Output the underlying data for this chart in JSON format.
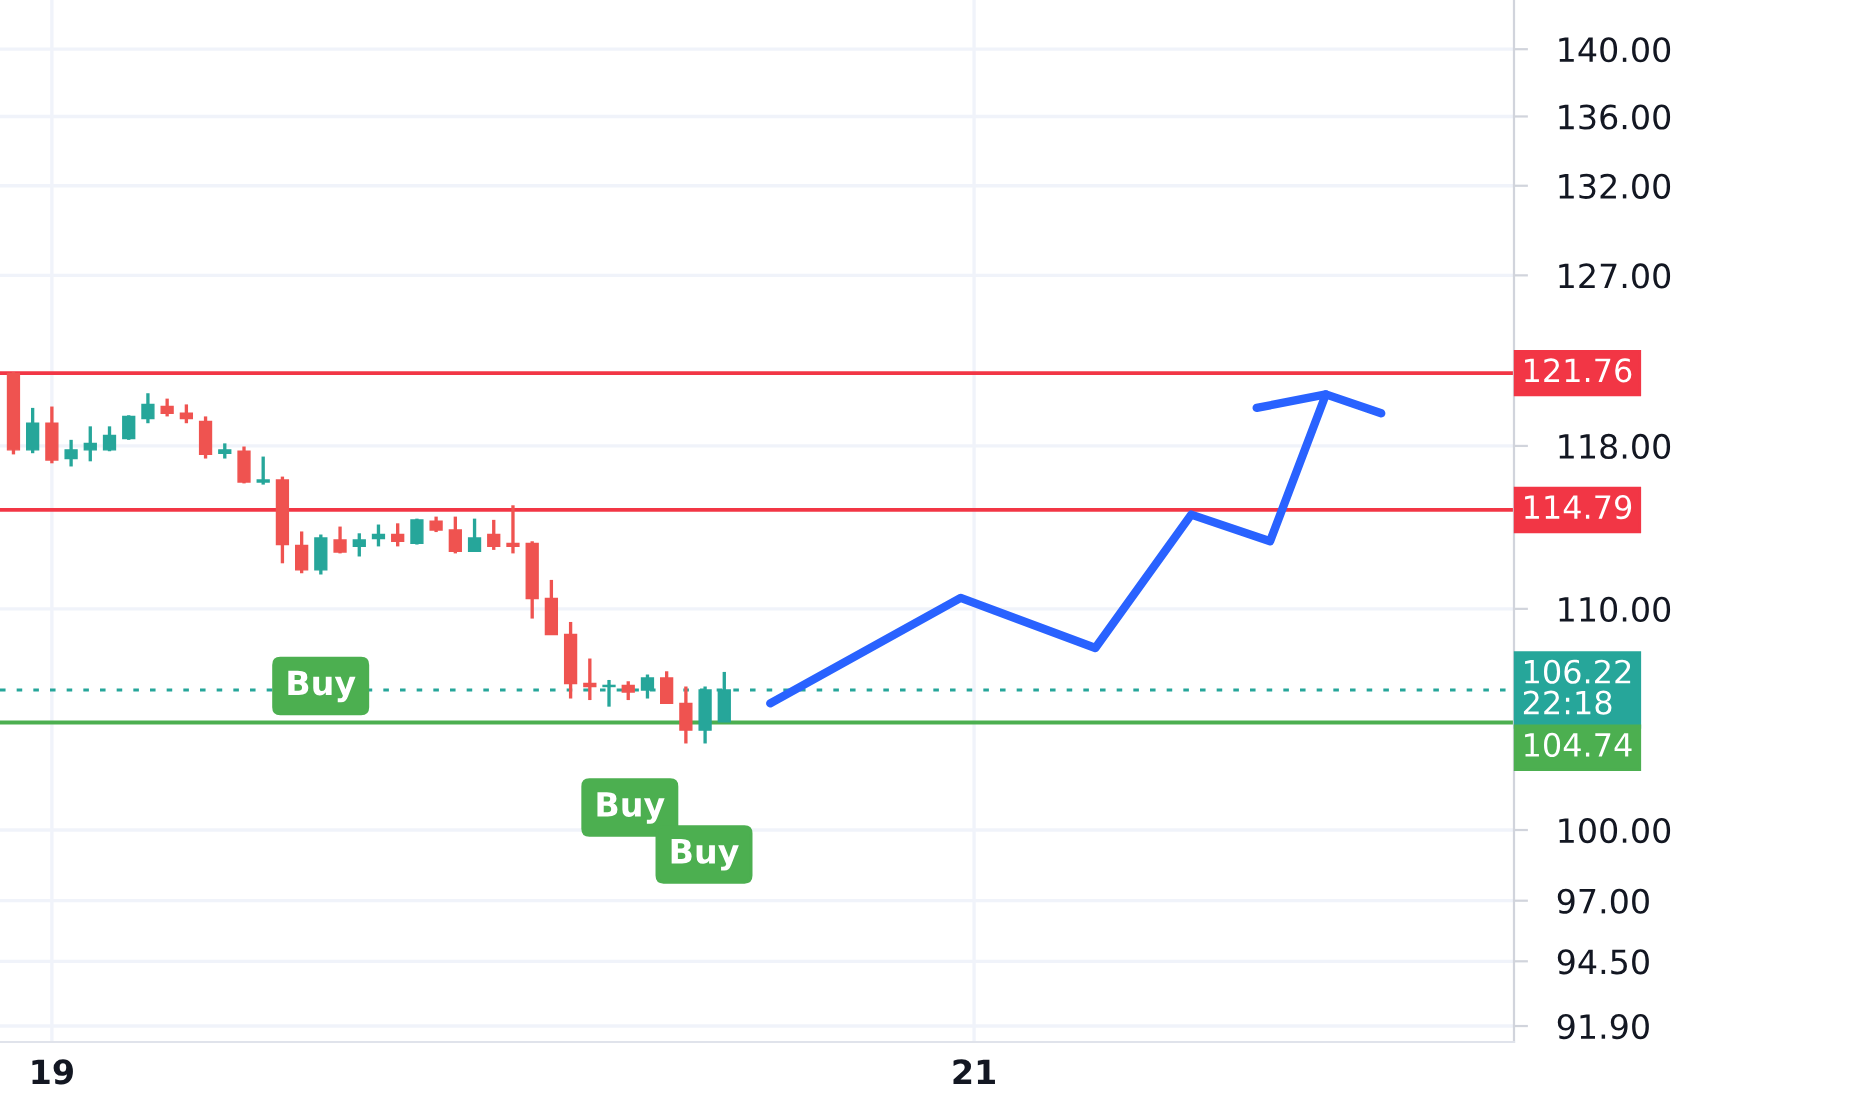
{
  "chart_data": {
    "type": "candlestick",
    "log": true,
    "grid": true,
    "x": [
      18.9167,
      18.9583,
      19.0,
      19.0417,
      19.0833,
      19.125,
      19.1667,
      19.2083,
      19.25,
      19.2917,
      19.3333,
      19.375,
      19.4167,
      19.4583,
      19.5,
      19.5417,
      19.5833,
      19.625,
      19.6667,
      19.7083,
      19.75,
      19.7917,
      19.8333,
      19.875,
      19.9167,
      19.9583,
      20.0,
      20.0417,
      20.0833,
      20.125,
      20.1667,
      20.2083,
      20.25,
      20.2917,
      20.3333,
      20.375,
      20.4167,
      20.4583
    ],
    "ohlc": [
      [
        121.75,
        121.82,
        117.57,
        117.8
      ],
      [
        117.8,
        119.95,
        117.63,
        119.16
      ],
      [
        119.16,
        120.02,
        117.12,
        117.29
      ],
      [
        117.36,
        118.31,
        116.96,
        117.8
      ],
      [
        117.8,
        119.0,
        117.22,
        118.13
      ],
      [
        117.8,
        119.0,
        117.73,
        118.54
      ],
      [
        118.37,
        119.57,
        118.31,
        119.51
      ],
      [
        119.4,
        120.71,
        119.16,
        120.13
      ],
      [
        120.02,
        120.43,
        119.51,
        119.67
      ],
      [
        119.67,
        120.13,
        119.16,
        119.4
      ],
      [
        119.25,
        119.51,
        117.36,
        117.57
      ],
      [
        117.63,
        118.13,
        117.36,
        117.8
      ],
      [
        117.73,
        117.97,
        116.11,
        116.18
      ],
      [
        116.18,
        117.46,
        116.05,
        116.28
      ],
      [
        116.28,
        116.45,
        112.18,
        113.09
      ],
      [
        113.05,
        113.73,
        111.7,
        111.86
      ],
      [
        111.86,
        113.58,
        111.64,
        113.41
      ],
      [
        113.31,
        113.97,
        112.66,
        112.73
      ],
      [
        113.0,
        113.64,
        112.51,
        113.31
      ],
      [
        113.38,
        114.07,
        113.0,
        113.58
      ],
      [
        113.58,
        114.13,
        113.0,
        113.25
      ],
      [
        113.15,
        114.36,
        113.09,
        114.3
      ],
      [
        114.23,
        114.46,
        113.7,
        113.8
      ],
      [
        113.8,
        114.46,
        112.66,
        112.76
      ],
      [
        112.76,
        114.36,
        112.76,
        113.41
      ],
      [
        113.58,
        114.3,
        112.83,
        113.0
      ],
      [
        113.15,
        115.02,
        112.66,
        113.0
      ],
      [
        113.15,
        113.25,
        109.54,
        110.49
      ],
      [
        110.49,
        111.38,
        108.79,
        108.79
      ],
      [
        108.79,
        109.38,
        105.83,
        106.52
      ],
      [
        106.52,
        107.67,
        105.76,
        106.38
      ],
      [
        106.38,
        106.68,
        105.46,
        106.43
      ],
      [
        106.43,
        106.62,
        105.76,
        106.13
      ],
      [
        106.22,
        106.93,
        105.83,
        106.77
      ],
      [
        106.77,
        107.08,
        105.61,
        105.61
      ],
      [
        105.61,
        106.38,
        103.8,
        104.4
      ],
      [
        104.4,
        106.38,
        103.8,
        106.22
      ],
      [
        104.77,
        107.05,
        104.77,
        106.22
      ]
    ],
    "colors": [
      "#ef5350",
      "#26a69a",
      "#ef5350",
      "#26a69a",
      "#26a69a",
      "#26a69a",
      "#26a69a",
      "#26a69a",
      "#ef5350",
      "#ef5350",
      "#ef5350",
      "#26a69a",
      "#ef5350",
      "#26a69a",
      "#ef5350",
      "#ef5350",
      "#26a69a",
      "#ef5350",
      "#26a69a",
      "#26a69a",
      "#ef5350",
      "#26a69a",
      "#ef5350",
      "#ef5350",
      "#26a69a",
      "#ef5350",
      "#ef5350",
      "#ef5350",
      "#ef5350",
      "#ef5350",
      "#ef5350",
      "#26a69a",
      "#ef5350",
      "#26a69a",
      "#ef5350",
      "#ef5350",
      "#26a69a",
      "#26a69a"
    ],
    "series": [
      {
        "type": "line",
        "color": "#2962ff",
        "x": [
          20.558,
          20.971,
          21.263,
          21.471,
          21.642,
          21.763
        ],
        "values": [
          105.61,
          110.52,
          108.16,
          114.56,
          113.25,
          120.65
        ]
      },
      {
        "type": "line",
        "color": "#2962ff",
        "x": [
          21.613,
          21.763,
          21.883
        ],
        "values": [
          119.95,
          120.65,
          119.67
        ]
      }
    ],
    "ref_lines": [
      {
        "axis": "y",
        "value": 121.76,
        "label": "121.76",
        "color": "#f23645",
        "line_style": "solid"
      },
      {
        "axis": "y",
        "value": 114.79,
        "label": "114.79",
        "color": "#f23645",
        "line_style": "solid"
      },
      {
        "axis": "y",
        "value": 106.22,
        "label": "106.22\n22:18",
        "color": "#26a69a",
        "line_style": "dotted"
      },
      {
        "axis": "y",
        "value": 104.74,
        "label": "104.74",
        "color": "#4caf50",
        "line_style": "solid"
      }
    ],
    "annotations": [
      {
        "text": "Buy",
        "x": 19.583,
        "y": 106.4
      },
      "Buy",
      "Buy"
    ],
    "xlim": [
      18.8875,
      22.171
    ],
    "xticks": [
      19,
      21
    ],
    "ylim": [
      91.27,
      143.0
    ],
    "yticks": [
      {
        "value": 91.9,
        "label": "91.90"
      },
      {
        "value": 94.5,
        "label": "94.50"
      },
      {
        "value": 97,
        "label": "97.00"
      },
      {
        "value": 100,
        "label": "100.00"
      },
      {
        "value": 110,
        "label": "110.00"
      },
      {
        "value": 118,
        "label": "118.00"
      },
      {
        "value": 127,
        "label": "127.00"
      },
      {
        "value": 132,
        "label": "132.00"
      },
      {
        "value": 136,
        "label": "136.00"
      },
      {
        "value": 140,
        "label": "140.00"
      }
    ]
  }
}
